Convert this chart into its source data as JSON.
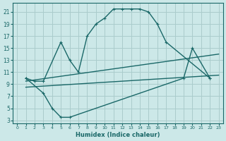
{
  "xlabel": "Humidex (Indice chaleur)",
  "bg_color": "#cce8e8",
  "grid_color": "#aacccc",
  "line_color": "#1a6868",
  "xlim": [
    -0.5,
    23.5
  ],
  "ylim": [
    2.5,
    22.5
  ],
  "xticks": [
    0,
    1,
    2,
    3,
    4,
    5,
    6,
    7,
    8,
    9,
    10,
    11,
    12,
    13,
    14,
    15,
    16,
    17,
    18,
    19,
    20,
    21,
    22,
    23
  ],
  "yticks": [
    3,
    5,
    7,
    9,
    11,
    13,
    15,
    17,
    19,
    21
  ],
  "line1_x": [
    1,
    2,
    3,
    5,
    6,
    7,
    8,
    9,
    10,
    11,
    12,
    13,
    14,
    15,
    16,
    17,
    22
  ],
  "line1_y": [
    10,
    9.5,
    9.5,
    16,
    13,
    11,
    17,
    19,
    20,
    21.5,
    21.5,
    21.5,
    21.5,
    21,
    19,
    16,
    10
  ],
  "line2_x": [
    1,
    3,
    4,
    5,
    6,
    19,
    20,
    22
  ],
  "line2_y": [
    10,
    7.5,
    5,
    3.5,
    3.5,
    10,
    15,
    10
  ],
  "line3_x": [
    1,
    23
  ],
  "line3_y": [
    8.5,
    10.5
  ],
  "line4_x": [
    1,
    23
  ],
  "line4_y": [
    9.5,
    14
  ]
}
